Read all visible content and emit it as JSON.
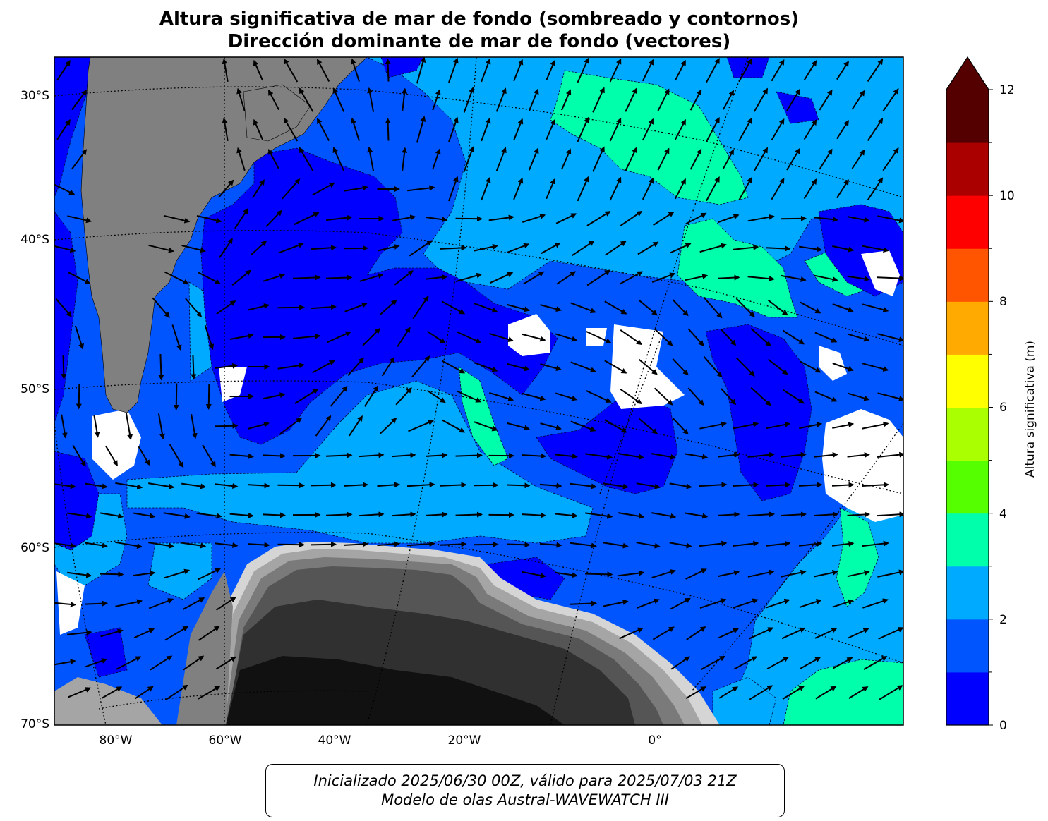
{
  "title_line1": "Altura significativa de mar de fondo (sombreado y contornos)",
  "title_line2": "Dirección dominante de mar de fondo (vectores)",
  "lat_ticks": [
    "30°S",
    "40°S",
    "50°S",
    "60°S",
    "70°S"
  ],
  "lon_ticks": [
    "80°W",
    "60°W",
    "40°W",
    "20°W",
    "0°"
  ],
  "colorbar": {
    "label": "Altura significativa (m)",
    "tick_labels": [
      "0",
      "2",
      "4",
      "6",
      "8",
      "10",
      "12"
    ],
    "levels": [
      0,
      1,
      2,
      3,
      4,
      5,
      6,
      7,
      8,
      9,
      10,
      11,
      12
    ],
    "colors": [
      "#0000ff",
      "#0055ff",
      "#00aaff",
      "#00ffaa",
      "#55ff00",
      "#aaff00",
      "#ffff00",
      "#ffaa00",
      "#ff5500",
      "#ff0000",
      "#aa0000",
      "#550000"
    ],
    "extend": "max"
  },
  "legend_colors": {
    "land": "#808080",
    "ice_shelf_shades": [
      "#111111",
      "#303030",
      "#555555",
      "#7a7a7a",
      "#a5a5a5",
      "#d5d5d5"
    ],
    "no_data": "#ffffff"
  },
  "footer": {
    "line1": "Inicializado 2025/06/30 00Z, válido para 2025/07/03 21Z",
    "line2": "Modelo de olas Austral-WAVEWATCH III"
  }
}
